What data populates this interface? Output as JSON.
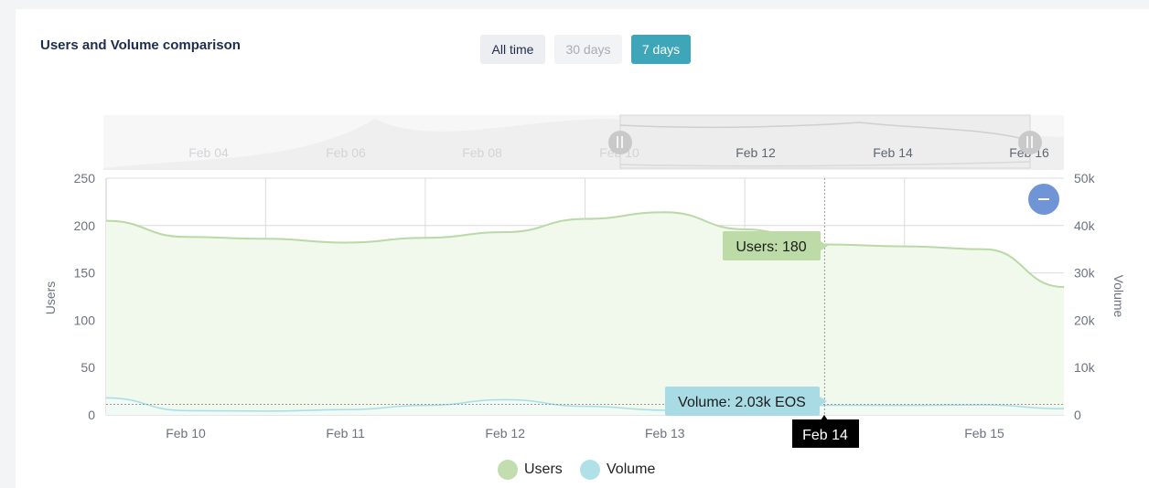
{
  "header": {
    "title": "Users and Volume comparison"
  },
  "range_buttons": {
    "all_time": "All time",
    "days_30": "30 days",
    "days_7": "7 days",
    "active": "7 days"
  },
  "colors": {
    "users_line": "#b9d9a6",
    "users_fill": "#f1f8ec",
    "volume_line": "#a6dde6",
    "accent": "#3ea6b8",
    "zoom_button": "#6f95d6"
  },
  "icons": {
    "reset_zoom": "minus-icon",
    "navigator_handles": "pause-handle-icon"
  },
  "navigator": {
    "labels": [
      "Feb 04",
      "Feb 06",
      "Feb 08",
      "Feb 10",
      "Feb 12",
      "Feb 14",
      "Feb 16"
    ]
  },
  "chart_data": {
    "type": "area",
    "categories": [
      "Feb 10",
      "Feb 11",
      "Feb 12",
      "Feb 13",
      "Feb 14",
      "Feb 15"
    ],
    "left_axis": {
      "label": "Users",
      "ticks": [
        "0",
        "50",
        "100",
        "150",
        "200",
        "250"
      ],
      "range": [
        0,
        250
      ]
    },
    "right_axis": {
      "label": "Volume",
      "ticks": [
        "0",
        "10k",
        "20k",
        "30k",
        "40k",
        "50k"
      ],
      "range": [
        0,
        50000
      ]
    },
    "series": [
      {
        "name": "Users",
        "axis": "left",
        "x": [
          "Feb 9.5",
          "Feb 10",
          "Feb 10.5",
          "Feb 11",
          "Feb 11.5",
          "Feb 12",
          "Feb 12.5",
          "Feb 13",
          "Feb 13.5",
          "Feb 14",
          "Feb 14.5",
          "Feb 15",
          "Feb 15.5"
        ],
        "values": [
          205,
          188,
          186,
          182,
          187,
          193,
          207,
          214,
          196,
          180,
          178,
          175,
          135
        ]
      },
      {
        "name": "Volume",
        "axis": "right",
        "x": [
          "Feb 9.5",
          "Feb 10",
          "Feb 10.5",
          "Feb 11",
          "Feb 11.5",
          "Feb 12",
          "Feb 12.5",
          "Feb 13",
          "Feb 13.5",
          "Feb 14",
          "Feb 14.5",
          "Feb 15",
          "Feb 15.5"
        ],
        "values": [
          3600,
          900,
          800,
          1100,
          2000,
          3200,
          1800,
          1000,
          1500,
          2030,
          2000,
          2100,
          1300
        ]
      }
    ],
    "tooltip": {
      "users": "Users: 180",
      "volume": "Volume: 2.03k EOS",
      "date": "Feb 14"
    },
    "legend": [
      "Users",
      "Volume"
    ],
    "grid": true,
    "legend_position": "bottom-center"
  }
}
